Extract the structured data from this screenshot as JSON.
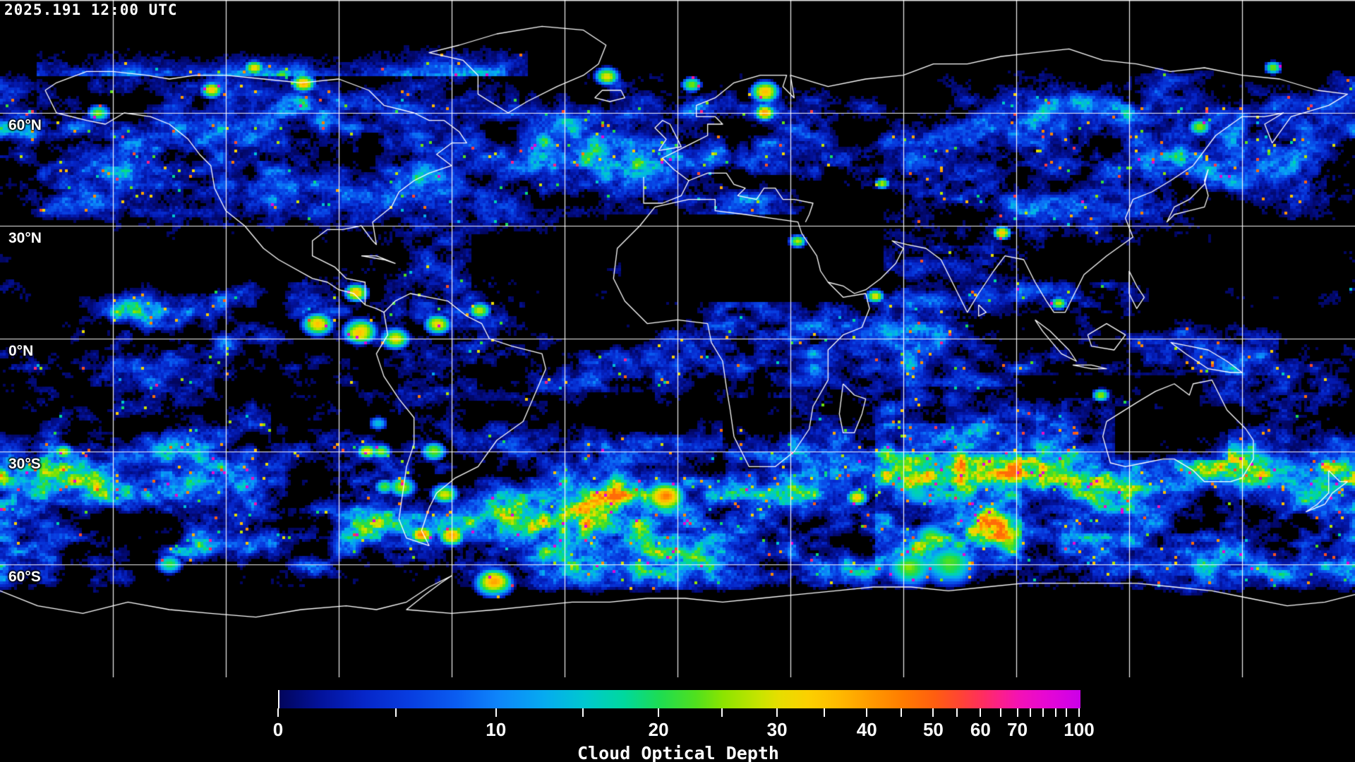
{
  "header": {
    "timestamp": "2025.191 12:00 UTC"
  },
  "map": {
    "projection": "equirectangular",
    "background_color": "#000000",
    "coastline_color": "#ffffff",
    "grid": {
      "lon_step_deg": 30,
      "lat_step_deg": 30,
      "color": "#ffffff"
    },
    "lat_labels": [
      {
        "label": "60°N",
        "lat": 60
      },
      {
        "label": "30°N",
        "lat": 30
      },
      {
        "label": "0°N",
        "lat": 0
      },
      {
        "label": "30°S",
        "lat": -30
      },
      {
        "label": "60°S",
        "lat": -60
      }
    ]
  },
  "colorbar": {
    "caption": "Cloud Optical Depth",
    "min": 0,
    "max": 100,
    "ticks": [
      {
        "value": 0,
        "pos": 0.0,
        "labeled": true
      },
      {
        "value": 5,
        "pos": 0.147,
        "labeled": false
      },
      {
        "value": 10,
        "pos": 0.272,
        "labeled": true
      },
      {
        "value": 15,
        "pos": 0.381,
        "labeled": false
      },
      {
        "value": 20,
        "pos": 0.475,
        "labeled": true
      },
      {
        "value": 25,
        "pos": 0.554,
        "labeled": false
      },
      {
        "value": 30,
        "pos": 0.623,
        "labeled": true
      },
      {
        "value": 35,
        "pos": 0.682,
        "labeled": false
      },
      {
        "value": 40,
        "pos": 0.735,
        "labeled": true
      },
      {
        "value": 45,
        "pos": 0.778,
        "labeled": false
      },
      {
        "value": 50,
        "pos": 0.818,
        "labeled": true
      },
      {
        "value": 55,
        "pos": 0.848,
        "labeled": false
      },
      {
        "value": 60,
        "pos": 0.877,
        "labeled": true
      },
      {
        "value": 65,
        "pos": 0.902,
        "labeled": false
      },
      {
        "value": 70,
        "pos": 0.923,
        "labeled": true
      },
      {
        "value": 75,
        "pos": 0.939,
        "labeled": false
      },
      {
        "value": 80,
        "pos": 0.955,
        "labeled": false
      },
      {
        "value": 85,
        "pos": 0.971,
        "labeled": false
      },
      {
        "value": 90,
        "pos": 0.984,
        "labeled": false
      },
      {
        "value": 100,
        "pos": 1.0,
        "labeled": true
      }
    ],
    "gradient": [
      [
        0.0,
        "#02055c"
      ],
      [
        0.05,
        "#03129a"
      ],
      [
        0.105,
        "#0626c8"
      ],
      [
        0.16,
        "#083cdf"
      ],
      [
        0.22,
        "#0a5cf0"
      ],
      [
        0.272,
        "#0e84fa"
      ],
      [
        0.33,
        "#06aaf0"
      ],
      [
        0.381,
        "#00c8cf"
      ],
      [
        0.43,
        "#00d89e"
      ],
      [
        0.475,
        "#1edc52"
      ],
      [
        0.52,
        "#50e01e"
      ],
      [
        0.554,
        "#8ce400"
      ],
      [
        0.6,
        "#c8e400"
      ],
      [
        0.623,
        "#e6de00"
      ],
      [
        0.66,
        "#fcd000"
      ],
      [
        0.7,
        "#ffb800"
      ],
      [
        0.735,
        "#ff9c00"
      ],
      [
        0.778,
        "#ff7c00"
      ],
      [
        0.818,
        "#ff5e10"
      ],
      [
        0.85,
        "#ff4434"
      ],
      [
        0.877,
        "#ff2e5e"
      ],
      [
        0.902,
        "#fb1e8e"
      ],
      [
        0.923,
        "#f312b4"
      ],
      [
        0.955,
        "#e708d2"
      ],
      [
        0.984,
        "#d602e2"
      ],
      [
        1.0,
        "#cb00e8"
      ]
    ]
  }
}
